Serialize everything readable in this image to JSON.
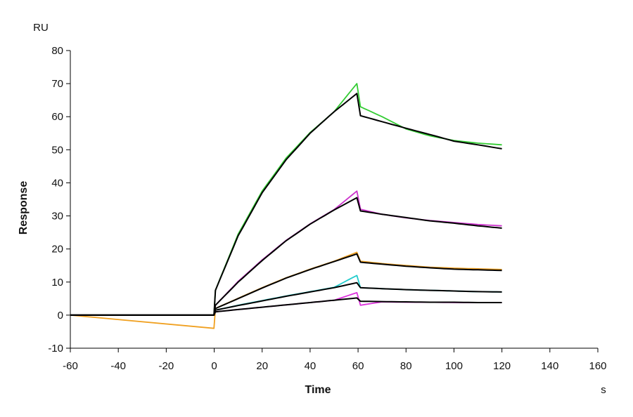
{
  "chart_data": {
    "type": "line",
    "title": "",
    "xlabel": "Time",
    "ylabel": "Response",
    "x_unit": "s",
    "y_unit": "RU",
    "xlim": [
      -60,
      160
    ],
    "ylim": [
      -10,
      80
    ],
    "xticks": [
      -60,
      -40,
      -20,
      0,
      20,
      40,
      60,
      80,
      100,
      120,
      140,
      160
    ],
    "yticks": [
      -10,
      0,
      10,
      20,
      30,
      40,
      50,
      60,
      70,
      80
    ],
    "grid": false,
    "x": [
      -60,
      -0.1,
      0.5,
      10,
      20,
      30,
      40,
      50,
      59.5,
      61,
      70,
      80,
      90,
      100,
      110,
      120
    ],
    "series": [
      {
        "color": "#33cc33",
        "role": "measured",
        "values": [
          0,
          0,
          7.5,
          24.5,
          37.5,
          47.5,
          55.2,
          61.5,
          70,
          63,
          60,
          56.3,
          54.2,
          52.8,
          52,
          51.5
        ]
      },
      {
        "color": "#000000",
        "role": "fit",
        "values": [
          0,
          0,
          7.5,
          24,
          37,
          47,
          55,
          61.5,
          67,
          60.3,
          58.5,
          56.5,
          54.6,
          52.6,
          51.5,
          50.3
        ]
      },
      {
        "color": "#cc33cc",
        "role": "measured",
        "values": [
          0,
          0,
          3,
          10.2,
          16.7,
          22.6,
          27.6,
          31.9,
          37.5,
          32,
          30.5,
          29.4,
          28.6,
          28,
          27.4,
          27
        ]
      },
      {
        "color": "#000000",
        "role": "fit",
        "values": [
          0,
          0,
          3,
          10,
          16.5,
          22.5,
          27.5,
          31.8,
          35.5,
          31.5,
          30.5,
          29.5,
          28.5,
          27.8,
          27,
          26.3
        ]
      },
      {
        "color": "#f0a020",
        "role": "measured",
        "values": [
          0,
          -4,
          2,
          5.1,
          8.3,
          11.3,
          13.9,
          16.3,
          19,
          16.3,
          15.6,
          15,
          14.5,
          14.2,
          14,
          13.8
        ]
      },
      {
        "color": "#000000",
        "role": "fit",
        "values": [
          0,
          0,
          2,
          5,
          8.2,
          11.2,
          13.8,
          16.2,
          18.5,
          16,
          15.4,
          14.8,
          14.3,
          13.9,
          13.7,
          13.5
        ]
      },
      {
        "color": "#22cccc",
        "role": "measured",
        "values": [
          0,
          0,
          1.5,
          3,
          4.4,
          5.8,
          7.1,
          8.4,
          12,
          8.3,
          8,
          7.7,
          7.5,
          7.3,
          7.1,
          7
        ]
      },
      {
        "color": "#000000",
        "role": "fit",
        "values": [
          0,
          0,
          1.5,
          2.9,
          4.3,
          5.7,
          7,
          8.3,
          9.8,
          8.3,
          8,
          7.7,
          7.5,
          7.3,
          7.1,
          7
        ]
      },
      {
        "color": "#dd33dd",
        "role": "measured",
        "values": [
          0,
          0,
          1,
          1.7,
          2.4,
          3.1,
          3.8,
          4.5,
          6.8,
          3,
          4,
          3.9,
          3.9,
          3.8,
          3.8,
          3.8
        ]
      },
      {
        "color": "#000000",
        "role": "fit",
        "values": [
          0,
          0,
          1,
          1.7,
          2.4,
          3.1,
          3.8,
          4.5,
          5.2,
          4.2,
          4.1,
          4,
          3.9,
          3.9,
          3.8,
          3.8
        ]
      }
    ]
  }
}
